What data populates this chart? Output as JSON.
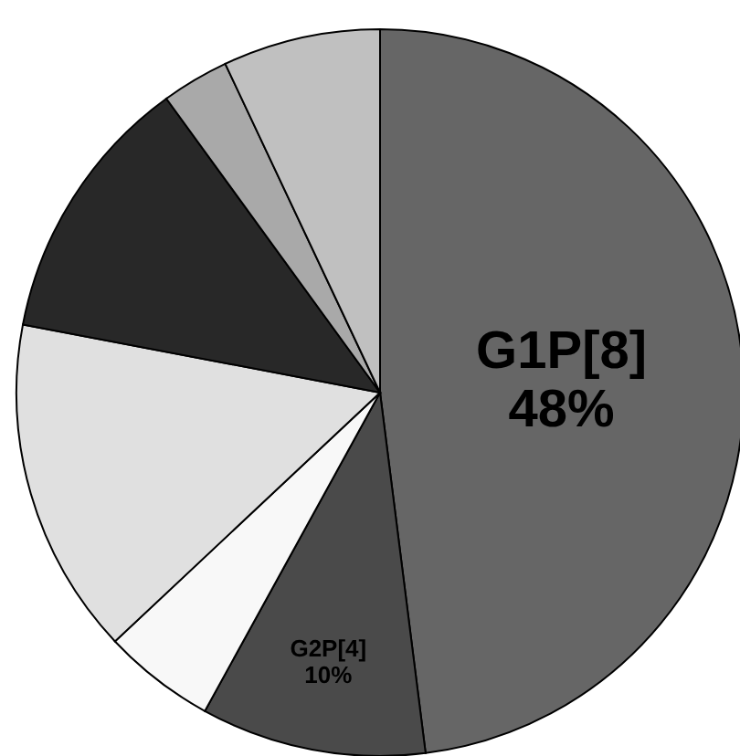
{
  "chart_data": {
    "type": "pie",
    "categories": [
      "G1P[8]",
      "G2P[4]",
      null,
      null,
      null,
      null,
      null
    ],
    "values": [
      48,
      10,
      5,
      15,
      12,
      3,
      7
    ],
    "colors": [
      "#666666",
      "#4a4a4a",
      "#f8f8f8",
      "#e0e0e0",
      "#282828",
      "#a9a9a9",
      "#c0c0c0"
    ],
    "value_labels": [
      "48%",
      "10%",
      null,
      null,
      null,
      null,
      null
    ]
  }
}
